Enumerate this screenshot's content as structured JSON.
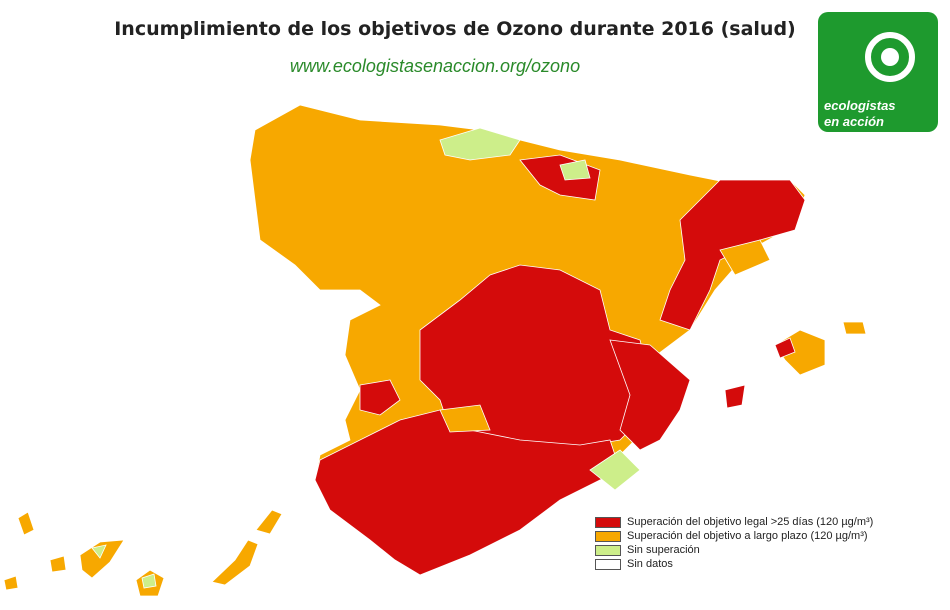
{
  "header": {
    "title": "Incumplimiento de los objetivos de Ozono durante 2016 (salud)",
    "url": "www.ecologistasenaccion.org/ozono"
  },
  "logo": {
    "line1": "ecologistas",
    "line2": "en acción"
  },
  "legend": [
    {
      "label": "Superación del objetivo legal >25 días (120 µg/m³)",
      "color": "#d40b0b"
    },
    {
      "label": "Superación del objetivo a largo plazo (120 µg/m³)",
      "color": "#f7a800"
    },
    {
      "label": "Sin superación",
      "color": "#cdee8a"
    },
    {
      "label": "Sin datos",
      "color": "#ffffff"
    }
  ]
}
